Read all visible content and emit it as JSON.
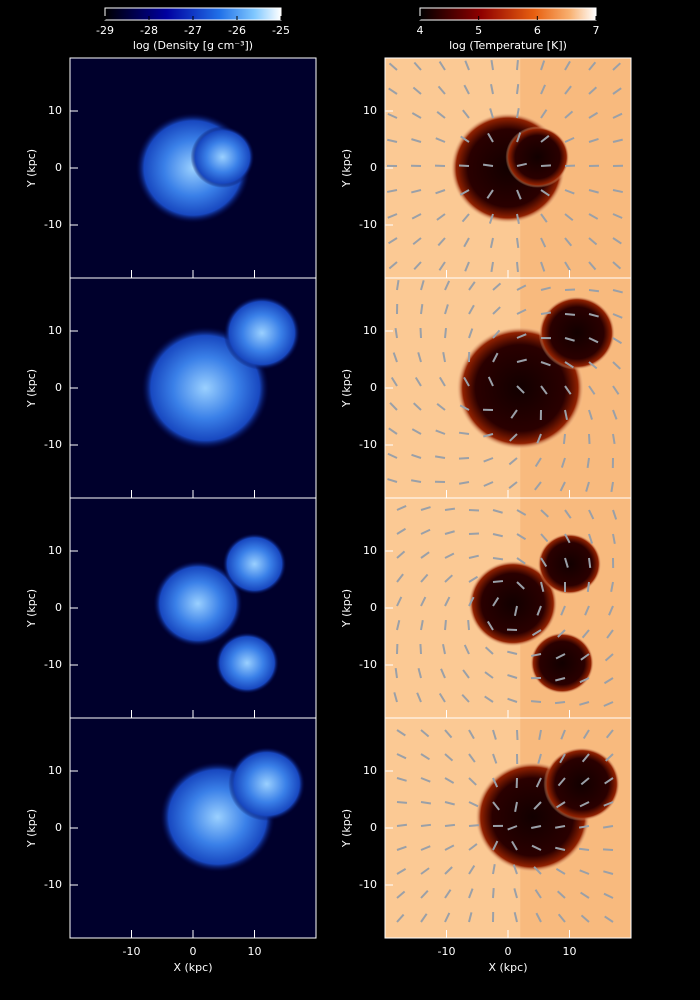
{
  "chart_data": [
    {
      "type": "heatmap",
      "colorbar": {
        "label": "log (Density [g cm⁻³])",
        "lim": [
          -29,
          -25
        ],
        "ticks": [
          -29,
          -28,
          -27,
          -26,
          -25
        ]
      },
      "xlabel": "X (kpc)",
      "ylabel": "Y (kpc)",
      "xlim": [
        -20,
        20
      ],
      "ylim": [
        -19.3,
        19.3
      ],
      "xticks": [
        -10,
        0,
        10
      ],
      "yticks": [
        -10,
        0,
        10
      ]
    },
    {
      "type": "heatmap",
      "colorbar": {
        "label": "log (Temperature [K])",
        "lim": [
          4,
          7
        ],
        "ticks": [
          4,
          5,
          6,
          7
        ]
      },
      "xlabel": "X (kpc)",
      "ylabel": "Y (kpc)",
      "xlim": [
        -20,
        20
      ],
      "ylim": [
        -19.3,
        19.3
      ],
      "xticks": [
        -10,
        0,
        10
      ],
      "yticks": [
        -10,
        0,
        10
      ]
    }
  ]
}
